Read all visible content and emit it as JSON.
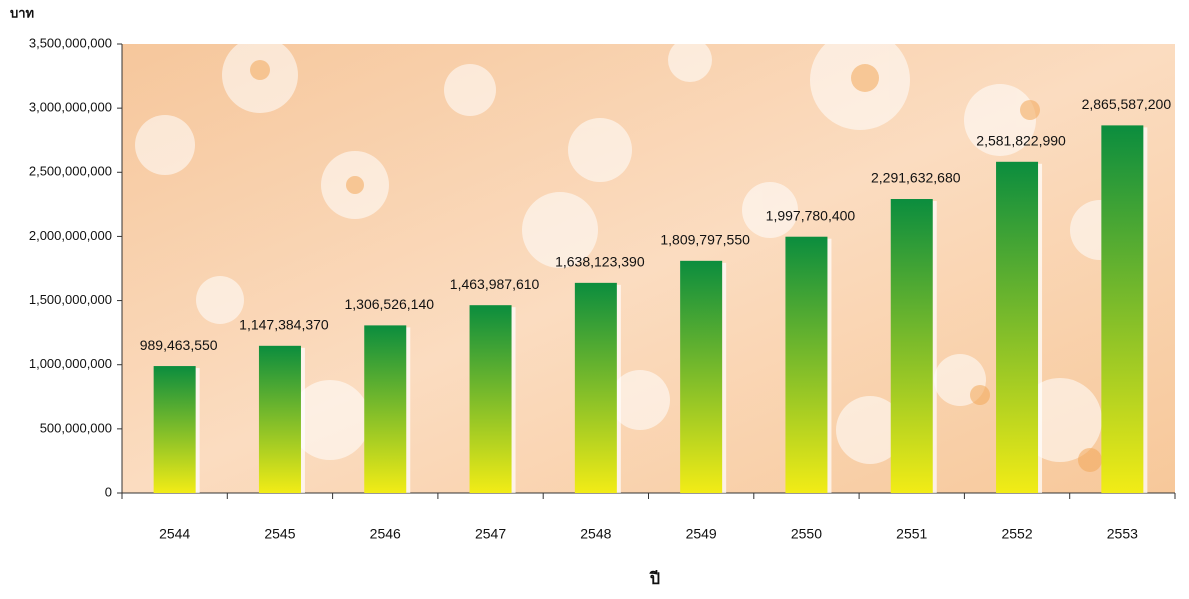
{
  "chart_data": {
    "type": "bar",
    "y_label": "บาท",
    "x_label": "ปี",
    "categories": [
      "2544",
      "2545",
      "2546",
      "2547",
      "2548",
      "2549",
      "2550",
      "2551",
      "2552",
      "2553"
    ],
    "values": [
      989463550,
      1147384370,
      1306526140,
      1463987610,
      1638123390,
      1809797550,
      1997780400,
      2291632680,
      2581822990,
      2865587200
    ],
    "value_labels": [
      "989,463,550",
      "1,147,384,370",
      "1,306,526,140",
      "1,463,987,610",
      "1,638,123,390",
      "1,809,797,550",
      "1,997,780,400",
      "2,291,632,680",
      "2,581,822,990",
      "2,865,587,200"
    ],
    "gradient": [
      "#0b8d3e",
      "#f2ec16"
    ],
    "ylim": [
      0,
      3500000000
    ],
    "yticks": [
      0,
      {
        "value": 500000000,
        "label": "500,000,000"
      },
      {
        "value": 1000000000,
        "label": "1,000,000,000"
      },
      {
        "value": 1500000000,
        "label": "1,500,000,000"
      },
      {
        "value": 2000000000,
        "label": "2,000,000,000"
      },
      {
        "value": 2500000000,
        "label": "2,500,000,000"
      },
      {
        "value": 3000000000,
        "label": "3,000,000,000"
      },
      {
        "value": 3500000000,
        "label": "3,500,000,000"
      }
    ]
  }
}
